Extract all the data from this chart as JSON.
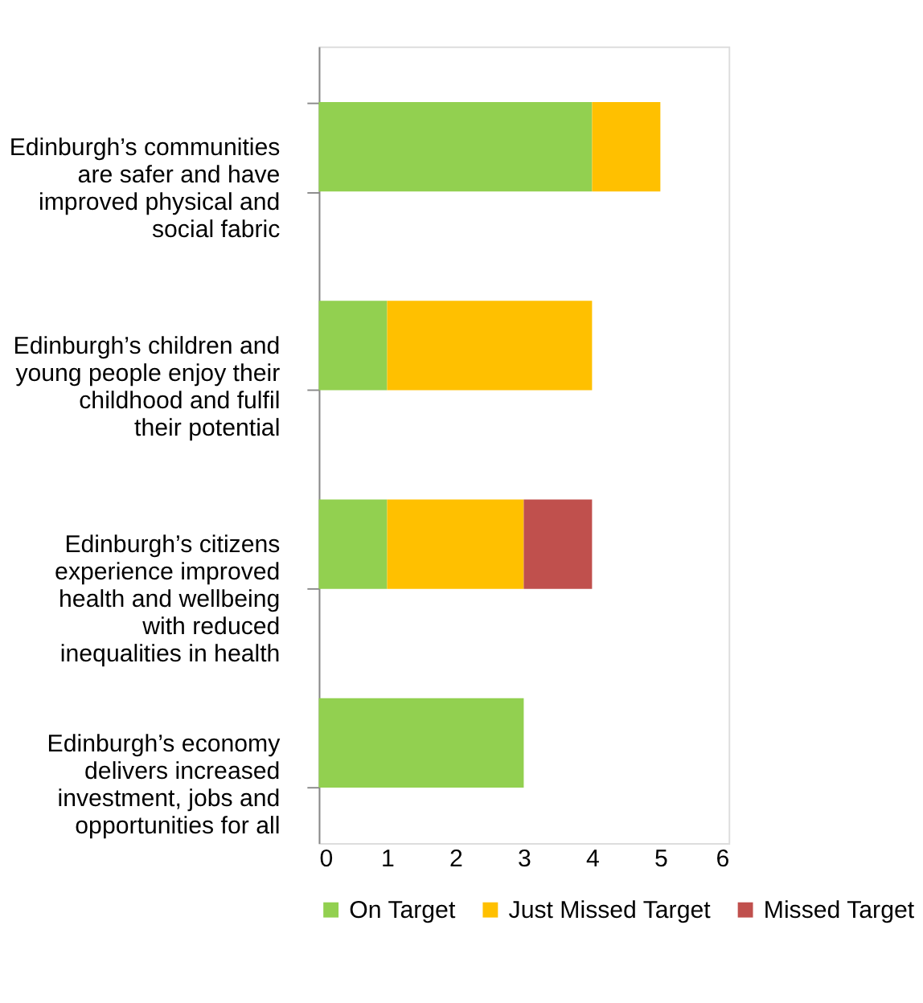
{
  "chart_data": {
    "type": "bar",
    "orientation": "horizontal",
    "stacked": true,
    "categories": [
      "Edinburgh’s communities are safer and have improved physical and social fabric",
      "Edinburgh’s children and young people enjoy their childhood and fulfil their potential",
      "Edinburgh’s citizens experience improved health and wellbeing with reduced inequalities in health",
      "Edinburgh’s economy delivers increased investment, jobs and opportunities for all"
    ],
    "series": [
      {
        "name": "On Target",
        "color": "#92d050",
        "values": [
          4,
          1,
          1,
          3
        ]
      },
      {
        "name": "Just Missed Target",
        "color": "#ffc000",
        "values": [
          1,
          3,
          2,
          0
        ]
      },
      {
        "name": "Missed Target",
        "color": "#c0504d",
        "values": [
          0,
          0,
          1,
          0
        ]
      }
    ],
    "xlim": [
      0,
      6
    ],
    "xticks": [
      0,
      1,
      2,
      3,
      4,
      5,
      6
    ],
    "grid": false,
    "legend": "bottom"
  }
}
